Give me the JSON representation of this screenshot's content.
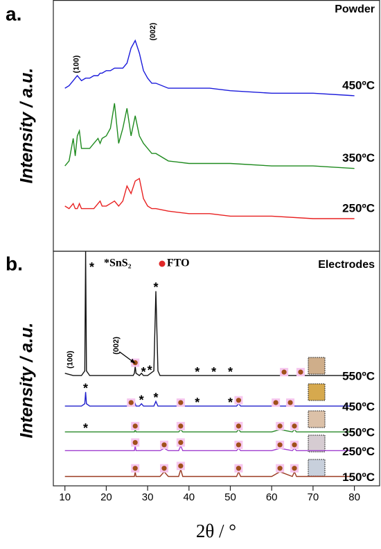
{
  "chart_data": [
    {
      "type": "line",
      "panel_label": "a.",
      "title": "Powder",
      "ylabel": "Intensity / a.u.",
      "xlim": [
        7.2,
        86.1
      ],
      "ylim": [
        0,
        100
      ],
      "x": [
        10,
        11,
        12,
        12.5,
        13,
        13.5,
        14,
        15,
        16,
        17,
        18,
        18.5,
        19,
        20,
        21,
        22,
        23,
        24,
        25,
        26,
        27,
        28,
        29,
        30,
        31,
        32,
        35,
        40,
        45,
        50,
        60,
        70,
        80
      ],
      "series": [
        {
          "name": "450ºC",
          "color": "#1a1adb",
          "values": [
            65,
            66,
            68,
            69,
            70,
            69,
            68,
            69,
            69,
            70,
            70,
            71,
            71,
            72,
            72,
            73,
            73,
            73,
            75,
            81,
            84,
            79,
            72,
            69,
            67,
            67,
            65,
            65,
            65,
            64,
            63,
            63,
            62
          ]
        },
        {
          "name": "350ºC",
          "color": "#1e8a1e",
          "values": [
            34,
            36,
            45,
            38,
            46,
            48,
            41,
            41,
            41,
            43,
            45,
            43,
            45,
            46,
            49,
            59,
            43,
            49,
            57,
            46,
            54,
            46,
            43,
            41,
            39,
            39,
            36,
            35,
            35,
            35,
            34,
            34,
            33
          ]
        },
        {
          "name": "250ºC",
          "color": "#e82020",
          "values": [
            18,
            17,
            19,
            17,
            17,
            19,
            17,
            17,
            17,
            17,
            19,
            20,
            18,
            18,
            19,
            20,
            18,
            20,
            26,
            23,
            28,
            29,
            21,
            18,
            17,
            17,
            16,
            15,
            15,
            14,
            14,
            13,
            13
          ]
        }
      ],
      "annotations": [
        {
          "text": "(100)",
          "x": 12.8,
          "y": 71
        },
        {
          "text": "(002)",
          "x": 31.3,
          "y": 84
        }
      ]
    },
    {
      "type": "line",
      "panel_label": "b.",
      "title": "Electrodes",
      "ylabel": "Intensity / a.u.",
      "xlabel": "2θ / °",
      "xlim": [
        7.2,
        86.1
      ],
      "ylim": [
        0,
        100
      ],
      "xticks": [
        10,
        20,
        30,
        40,
        50,
        60,
        70,
        80
      ],
      "legend": [
        "*SnS₂",
        "FTO"
      ],
      "legend_dot_color": "#e02828",
      "fto_color": "#a0501a",
      "sns2_symbol": "*",
      "x": [
        10,
        12,
        14,
        14.8,
        15,
        15.2,
        16,
        20,
        25,
        26.5,
        26.8,
        27,
        27.2,
        28,
        28.5,
        29,
        30,
        31.5,
        32,
        32.5,
        33,
        34,
        35,
        37.5,
        38,
        38.5,
        40,
        45,
        50,
        51.5,
        52,
        52.5,
        55,
        60,
        62,
        65,
        65.5,
        66,
        70,
        75,
        80
      ],
      "series": [
        {
          "name": "550ºC",
          "color": "#111111",
          "values": [
            48,
            47,
            47,
            49,
            100,
            49,
            47,
            47,
            47,
            47,
            48,
            51,
            48,
            47,
            48,
            47,
            47,
            49,
            83,
            49,
            47,
            47,
            47,
            47,
            47,
            47,
            47,
            47,
            47,
            47,
            47,
            47,
            47,
            47,
            47,
            47,
            47,
            47,
            47,
            47,
            47
          ],
          "sns2_peaks": [
            15,
            32,
            29,
            30.5,
            42,
            46,
            50
          ],
          "fto_peaks": [
            27,
            63,
            67
          ]
        },
        {
          "name": "450ºC",
          "color": "#2020cc",
          "values": [
            34,
            34,
            34,
            35,
            40,
            35,
            34,
            34,
            34,
            34,
            34,
            35,
            34,
            34,
            35,
            34,
            34,
            34,
            36,
            34,
            34,
            34,
            34,
            34,
            34,
            34,
            34,
            34,
            34,
            34,
            35,
            34,
            34,
            34,
            34,
            34,
            34,
            34,
            34,
            34,
            34
          ],
          "sns2_peaks": [
            15,
            28.5,
            32,
            42,
            50
          ],
          "fto_peaks": [
            26,
            38,
            52,
            61,
            64.5
          ]
        },
        {
          "name": "350ºC",
          "color": "#2a8a2a",
          "values": [
            23,
            23,
            23,
            23,
            23,
            23,
            23,
            23,
            23,
            23,
            23,
            24,
            23,
            23,
            23,
            23,
            23,
            23,
            23,
            23,
            23,
            23,
            23,
            23,
            24,
            23,
            23,
            23,
            23,
            23,
            24,
            23,
            23,
            23,
            24,
            23,
            24,
            23,
            23,
            23,
            23
          ],
          "sns2_peaks": [
            15
          ],
          "fto_peaks": [
            27,
            38,
            52,
            62,
            65.5
          ]
        },
        {
          "name": "250ºC",
          "color": "#a040d0",
          "values": [
            15,
            15,
            15,
            15,
            15,
            15,
            15,
            15,
            15,
            15,
            15,
            17,
            15,
            15,
            15,
            15,
            15,
            15,
            15,
            15,
            15,
            16,
            15,
            15,
            17,
            15,
            15,
            15,
            15,
            15,
            16,
            15,
            15,
            15,
            16,
            15,
            16,
            15,
            15,
            15,
            15
          ],
          "fto_peaks": [
            27,
            34,
            38,
            52,
            62,
            65.5
          ]
        },
        {
          "name": "150ºC",
          "color": "#9a3a20",
          "values": [
            4,
            4,
            4,
            4,
            4,
            4,
            4,
            4,
            4,
            4,
            4,
            6,
            4,
            4,
            4,
            4,
            4,
            4,
            4,
            4,
            4,
            6,
            4,
            4,
            7,
            4,
            4,
            4,
            4,
            4,
            6,
            4,
            4,
            4,
            6,
            4,
            6,
            4,
            4,
            4,
            4
          ],
          "fto_peaks": [
            27,
            34,
            38,
            52,
            62,
            65.5
          ]
        }
      ],
      "annotations": [
        {
          "text": "(100)",
          "x": 11.3,
          "y": 50
        },
        {
          "text": "(002)",
          "x": 22.5,
          "y": 56,
          "arrow_to": 27
        }
      ]
    }
  ]
}
